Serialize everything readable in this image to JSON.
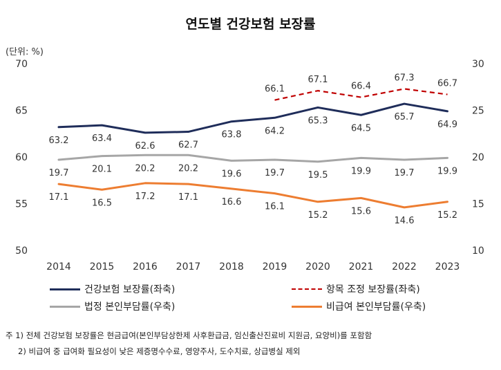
{
  "title": "연도별 건강보험 보장률",
  "unit": "(단위: %)",
  "legend": [
    {
      "label": "건강보험 보장률(좌축)",
      "color": "#1f2d5a",
      "dash": "solid"
    },
    {
      "label": "항목 조정 보장률(좌축)",
      "color": "#c00000",
      "dash": "dashed"
    },
    {
      "label": "법정 본인부담률(우축)",
      "color": "#a6a6a6",
      "dash": "solid"
    },
    {
      "label": "비급여 본인부담률(우축)",
      "color": "#ed7d31",
      "dash": "solid"
    }
  ],
  "notes": [
    "주 1) 전체 건강보험 보장률은 현금급여(본인부담상한제 사후환급금, 임신출산진료비 지원금, 요양비)를 포함함",
    "2) 비급여 중 급여화 필요성이 낮은 제증명수수료, 영양주사, 도수치료, 상급병실 제외"
  ],
  "chart_data": {
    "type": "line",
    "title": "연도별 건강보험 보장률",
    "x": [
      "2014",
      "2015",
      "2016",
      "2017",
      "2018",
      "2019",
      "2020",
      "2021",
      "2022",
      "2023"
    ],
    "left_axis": {
      "min": 50,
      "max": 70,
      "ticks": [
        "50",
        "55",
        "60",
        "65",
        "70"
      ]
    },
    "right_axis": {
      "min": 10,
      "max": 30,
      "ticks": [
        "10",
        "15",
        "20",
        "25",
        "30"
      ]
    },
    "series": [
      {
        "name": "건강보험 보장률(좌축)",
        "axis": "left",
        "color": "#1f2d5a",
        "values": [
          63.2,
          63.4,
          62.6,
          62.7,
          63.8,
          64.2,
          65.3,
          64.5,
          65.7,
          64.9
        ],
        "labels": [
          "63.2",
          "63.4",
          "62.6",
          "62.7",
          "63.8",
          "64.2",
          "65.3",
          "64.5",
          "65.7",
          "64.9"
        ],
        "label_pos": "below"
      },
      {
        "name": "항목 조정 보장률(좌축)",
        "axis": "left",
        "color": "#c00000",
        "dashed": true,
        "values": [
          null,
          null,
          null,
          null,
          null,
          66.1,
          67.1,
          66.4,
          67.3,
          66.7
        ],
        "labels": [
          null,
          null,
          null,
          null,
          null,
          "66.1",
          "67.1",
          "66.4",
          "67.3",
          "66.7"
        ],
        "label_pos": "above"
      },
      {
        "name": "법정 본인부담률(우축)",
        "axis": "right",
        "color": "#a6a6a6",
        "values": [
          19.7,
          20.1,
          20.2,
          20.2,
          19.6,
          19.7,
          19.5,
          19.9,
          19.7,
          19.9
        ],
        "labels": [
          "19.7",
          "20.1",
          "20.2",
          "20.2",
          "19.6",
          "19.7",
          "19.5",
          "19.9",
          "19.7",
          "19.9"
        ],
        "label_pos": "below"
      },
      {
        "name": "비급여 본인부담률(우축)",
        "axis": "right",
        "color": "#ed7d31",
        "values": [
          17.1,
          16.5,
          17.2,
          17.1,
          16.6,
          16.1,
          15.2,
          15.6,
          14.6,
          15.2
        ],
        "labels": [
          "17.1",
          "16.5",
          "17.2",
          "17.1",
          "16.6",
          "16.1",
          "15.2",
          "15.6",
          "14.6",
          "15.2"
        ],
        "label_pos": "below"
      }
    ]
  }
}
